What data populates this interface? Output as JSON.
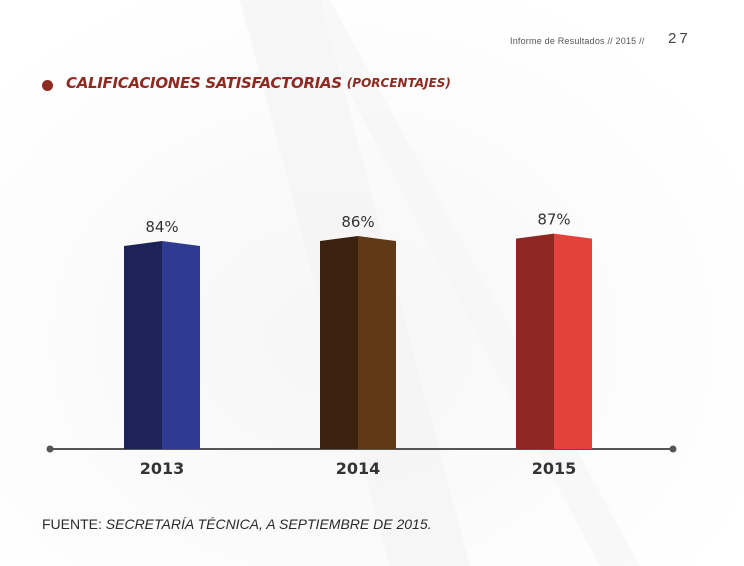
{
  "header": {
    "report_label": "Informe de Resultados // 2015 //",
    "page_number": "27"
  },
  "title": {
    "main": "CALIFICACIONES SATISFACTORIAS",
    "sub": "(PORCENTAJES)"
  },
  "source": {
    "label": "FUENTE:",
    "text": "SECRETARÍA TÉCNICA, A SEPTIEMBRE DE 2015."
  },
  "colors": {
    "title": "#8e2a22",
    "axis": "#555555"
  },
  "chart_data": {
    "type": "bar",
    "categories": [
      "2013",
      "2014",
      "2015"
    ],
    "values": [
      84,
      86,
      87
    ],
    "data_labels": [
      "84%",
      "86%",
      "87%"
    ],
    "bar_colors": [
      {
        "dark": "#1d2358",
        "light": "#2f3b91"
      },
      {
        "dark": "#3b2210",
        "light": "#603a16"
      },
      {
        "dark": "#8e2622",
        "light": "#e4413a"
      }
    ],
    "title": "CALIFICACIONES SATISFACTORIAS (PORCENTAJES)",
    "xlabel": "",
    "ylabel": "",
    "y_axis_shown": false,
    "grid": false
  }
}
